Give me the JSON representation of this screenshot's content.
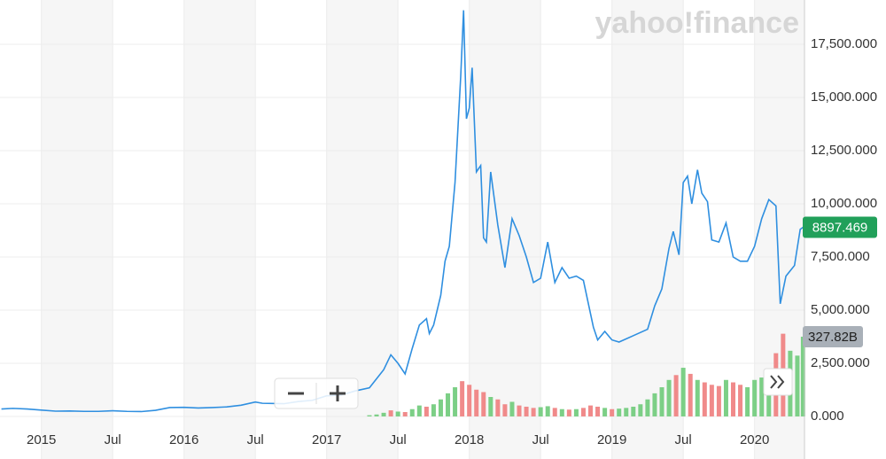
{
  "chart_data": {
    "type": "line",
    "logo": "yahoo!finance",
    "color": "#2f8fe0",
    "x": [
      2014.72,
      2014.8,
      2014.9,
      2015.0,
      2015.1,
      2015.2,
      2015.3,
      2015.4,
      2015.5,
      2015.6,
      2015.7,
      2015.8,
      2015.9,
      2016.0,
      2016.1,
      2016.2,
      2016.3,
      2016.4,
      2016.5,
      2016.55,
      2016.7,
      2016.8,
      2016.9,
      2017.0,
      2017.1,
      2017.2,
      2017.3,
      2017.4,
      2017.45,
      2017.5,
      2017.55,
      2017.6,
      2017.65,
      2017.7,
      2017.72,
      2017.75,
      2017.8,
      2017.83,
      2017.86,
      2017.9,
      2017.94,
      2017.96,
      2017.98,
      2018.0,
      2018.02,
      2018.05,
      2018.08,
      2018.1,
      2018.12,
      2018.15,
      2018.2,
      2018.25,
      2018.3,
      2018.35,
      2018.4,
      2018.45,
      2018.5,
      2018.55,
      2018.6,
      2018.65,
      2018.7,
      2018.75,
      2018.8,
      2018.87,
      2018.9,
      2018.95,
      2019.0,
      2019.05,
      2019.15,
      2019.25,
      2019.3,
      2019.35,
      2019.4,
      2019.43,
      2019.47,
      2019.5,
      2019.53,
      2019.56,
      2019.6,
      2019.63,
      2019.67,
      2019.7,
      2019.75,
      2019.8,
      2019.85,
      2019.9,
      2019.95,
      2020.0,
      2020.05,
      2020.1,
      2020.15,
      2020.18,
      2020.22,
      2020.28,
      2020.32,
      2020.34
    ],
    "values": [
      350,
      380,
      350,
      300,
      250,
      260,
      240,
      240,
      270,
      240,
      230,
      290,
      420,
      430,
      400,
      420,
      450,
      530,
      680,
      620,
      600,
      700,
      760,
      970,
      1000,
      1200,
      1350,
      2200,
      2900,
      2500,
      2000,
      3200,
      4300,
      4600,
      3900,
      4300,
      5700,
      7300,
      8000,
      11000,
      16000,
      19100,
      14000,
      14500,
      16400,
      11500,
      11800,
      8400,
      8200,
      11500,
      9000,
      7000,
      9300,
      8500,
      7500,
      6300,
      6500,
      8200,
      6300,
      7000,
      6500,
      6600,
      6400,
      4200,
      3600,
      4000,
      3600,
      3500,
      3800,
      4100,
      5200,
      6000,
      7900,
      8700,
      7600,
      11000,
      11300,
      10000,
      11600,
      10500,
      10100,
      8300,
      8200,
      9100,
      7500,
      7300,
      7300,
      8000,
      9300,
      10200,
      9900,
      5300,
      6600,
      7100,
      8800,
      8897.469
    ],
    "volume": {
      "axis": "y2",
      "x": [
        2017.3,
        2017.35,
        2017.4,
        2017.45,
        2017.5,
        2017.55,
        2017.6,
        2017.65,
        2017.7,
        2017.75,
        2017.8,
        2017.85,
        2017.9,
        2017.95,
        2018.0,
        2018.05,
        2018.1,
        2018.15,
        2018.2,
        2018.25,
        2018.3,
        2018.35,
        2018.4,
        2018.45,
        2018.5,
        2018.55,
        2018.6,
        2018.65,
        2018.7,
        2018.75,
        2018.8,
        2018.85,
        2018.9,
        2018.95,
        2019.0,
        2019.05,
        2019.1,
        2019.15,
        2019.2,
        2019.25,
        2019.3,
        2019.35,
        2019.4,
        2019.45,
        2019.5,
        2019.55,
        2019.6,
        2019.65,
        2019.7,
        2019.75,
        2019.8,
        2019.85,
        2019.9,
        2019.95,
        2020.0,
        2020.05,
        2020.1,
        2020.15,
        2020.2,
        2020.25,
        2020.3,
        2020.34
      ],
      "values": [
        5,
        8,
        15,
        25,
        20,
        18,
        30,
        45,
        40,
        50,
        70,
        95,
        120,
        145,
        130,
        110,
        100,
        80,
        70,
        50,
        60,
        45,
        40,
        35,
        38,
        42,
        35,
        30,
        28,
        30,
        35,
        45,
        40,
        35,
        30,
        32,
        35,
        40,
        50,
        70,
        95,
        120,
        150,
        170,
        200,
        175,
        150,
        140,
        130,
        125,
        150,
        140,
        130,
        120,
        150,
        160,
        170,
        260,
        340,
        270,
        250,
        327.82
      ],
      "colors": [
        "#7ccf86",
        "#7ccf86",
        "#7ccf86",
        "#f08a8a",
        "#7ccf86",
        "#f08a8a",
        "#7ccf86",
        "#7ccf86",
        "#f08a8a",
        "#7ccf86",
        "#7ccf86",
        "#7ccf86",
        "#7ccf86",
        "#f08a8a",
        "#f08a8a",
        "#f08a8a",
        "#f08a8a",
        "#7ccf86",
        "#f08a8a",
        "#f08a8a",
        "#7ccf86",
        "#f08a8a",
        "#f08a8a",
        "#f08a8a",
        "#7ccf86",
        "#7ccf86",
        "#f08a8a",
        "#7ccf86",
        "#f08a8a",
        "#7ccf86",
        "#f08a8a",
        "#f08a8a",
        "#f08a8a",
        "#7ccf86",
        "#f08a8a",
        "#7ccf86",
        "#7ccf86",
        "#7ccf86",
        "#7ccf86",
        "#7ccf86",
        "#7ccf86",
        "#7ccf86",
        "#7ccf86",
        "#f08a8a",
        "#7ccf86",
        "#f08a8a",
        "#7ccf86",
        "#f08a8a",
        "#f08a8a",
        "#f08a8a",
        "#7ccf86",
        "#f08a8a",
        "#f08a8a",
        "#7ccf86",
        "#7ccf86",
        "#7ccf86",
        "#7ccf86",
        "#f08a8a",
        "#f08a8a",
        "#7ccf86",
        "#7ccf86",
        "#7ccf86"
      ]
    },
    "xlim": [
      2014.71,
      2020.35
    ],
    "xticks": [
      {
        "value": 2015,
        "label": "2015"
      },
      {
        "value": 2015.5,
        "label": "Jul"
      },
      {
        "value": 2016,
        "label": "2016"
      },
      {
        "value": 2016.5,
        "label": "Jul"
      },
      {
        "value": 2017,
        "label": "2017"
      },
      {
        "value": 2017.5,
        "label": "Jul"
      },
      {
        "value": 2018,
        "label": "2018"
      },
      {
        "value": 2018.5,
        "label": "Jul"
      },
      {
        "value": 2019,
        "label": "2019"
      },
      {
        "value": 2019.5,
        "label": "Jul"
      },
      {
        "value": 2020,
        "label": "2020"
      }
    ],
    "ylim": [
      -833,
      19583
    ],
    "yticks": [
      {
        "value": 0,
        "label": "0.000"
      },
      {
        "value": 2500,
        "label": "2,500.000"
      },
      {
        "value": 5000,
        "label": "5,000.000"
      },
      {
        "value": 7500,
        "label": "7,500.000"
      },
      {
        "value": 10000,
        "label": "10,000.000"
      },
      {
        "value": 12500,
        "label": "12,500.000"
      },
      {
        "value": 15000,
        "label": "15,000.000"
      },
      {
        "value": 17500,
        "label": "17,500.000"
      }
    ],
    "y2lim": [
      -73,
      1712
    ],
    "grid": true,
    "price_badge": {
      "value": 8897.469,
      "label": "8897.469",
      "color": "#21a05a"
    },
    "volume_badge": {
      "value": 327.82,
      "label": "327.82B",
      "color": "#a9b0b8"
    }
  }
}
